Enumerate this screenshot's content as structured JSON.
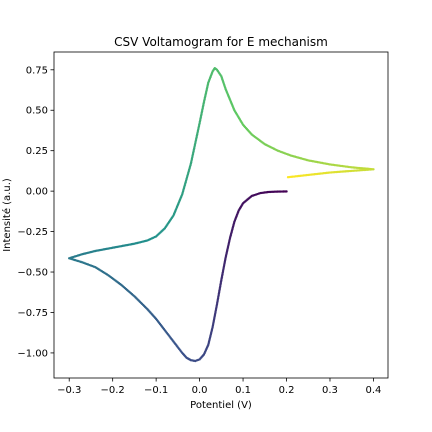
{
  "chart_data": {
    "type": "scatter",
    "title": "CSV Voltamogram for E mechanism",
    "xlabel": "Potentiel (V)",
    "ylabel": "Intensité (a.u.)",
    "xlim": [
      -0.335,
      0.4335
    ],
    "ylim": [
      -1.155,
      0.86
    ],
    "x_ticks": [
      -0.3,
      -0.2,
      -0.1,
      0.0,
      0.1,
      0.2,
      0.3,
      0.4
    ],
    "x_tick_labels": [
      "−0.3",
      "−0.2",
      "−0.1",
      "0.0",
      "0.1",
      "0.2",
      "0.3",
      "0.4"
    ],
    "y_ticks": [
      -1.0,
      -0.75,
      -0.5,
      -0.25,
      0.0,
      0.25,
      0.5,
      0.75
    ],
    "y_tick_labels": [
      "−1.00",
      "−0.75",
      "−0.50",
      "−0.25",
      "0.00",
      "0.25",
      "0.50",
      "0.75"
    ],
    "grid": false,
    "legend": "none",
    "colormap": "viridis",
    "color_by": "time",
    "marker_color_stops": [
      "#440154",
      "#3b528b",
      "#21918c",
      "#5ec962",
      "#fde725"
    ],
    "series": [
      {
        "segments": [
          {
            "direction": "cathodic sweep 0.2 V to -0.3 V",
            "points": [
              [
                0.2,
                -0.002
              ],
              [
                0.18,
                -0.003
              ],
              [
                0.16,
                -0.005
              ],
              [
                0.14,
                -0.012
              ],
              [
                0.12,
                -0.03
              ],
              [
                0.1,
                -0.075
              ],
              [
                0.09,
                -0.12
              ],
              [
                0.08,
                -0.19
              ],
              [
                0.07,
                -0.29
              ],
              [
                0.06,
                -0.41
              ],
              [
                0.05,
                -0.55
              ],
              [
                0.04,
                -0.7
              ],
              [
                0.03,
                -0.84
              ],
              [
                0.02,
                -0.95
              ],
              [
                0.01,
                -1.01
              ],
              [
                0.0,
                -1.04
              ],
              [
                -0.01,
                -1.05
              ],
              [
                -0.02,
                -1.045
              ],
              [
                -0.03,
                -1.03
              ],
              [
                -0.04,
                -1.0
              ],
              [
                -0.06,
                -0.93
              ],
              [
                -0.08,
                -0.86
              ],
              [
                -0.1,
                -0.79
              ],
              [
                -0.12,
                -0.73
              ],
              [
                -0.15,
                -0.65
              ],
              [
                -0.18,
                -0.58
              ],
              [
                -0.21,
                -0.52
              ],
              [
                -0.24,
                -0.47
              ],
              [
                -0.27,
                -0.44
              ],
              [
                -0.3,
                -0.415
              ]
            ]
          },
          {
            "direction": "anodic sweep -0.3 V to 0.4 V",
            "points": [
              [
                -0.3,
                -0.415
              ],
              [
                -0.27,
                -0.39
              ],
              [
                -0.24,
                -0.37
              ],
              [
                -0.21,
                -0.355
              ],
              [
                -0.18,
                -0.34
              ],
              [
                -0.15,
                -0.325
              ],
              [
                -0.12,
                -0.305
              ],
              [
                -0.1,
                -0.28
              ],
              [
                -0.08,
                -0.23
              ],
              [
                -0.06,
                -0.15
              ],
              [
                -0.04,
                -0.02
              ],
              [
                -0.02,
                0.17
              ],
              [
                0.0,
                0.42
              ],
              [
                0.01,
                0.55
              ],
              [
                0.02,
                0.67
              ],
              [
                0.03,
                0.74
              ],
              [
                0.035,
                0.76
              ],
              [
                0.04,
                0.75
              ],
              [
                0.05,
                0.71
              ],
              [
                0.06,
                0.63
              ],
              [
                0.08,
                0.5
              ],
              [
                0.1,
                0.41
              ],
              [
                0.12,
                0.35
              ],
              [
                0.15,
                0.29
              ],
              [
                0.18,
                0.25
              ],
              [
                0.21,
                0.22
              ],
              [
                0.25,
                0.19
              ],
              [
                0.3,
                0.165
              ],
              [
                0.35,
                0.147
              ],
              [
                0.4,
                0.135
              ]
            ]
          },
          {
            "direction": "return sweep 0.4 V to 0.2 V",
            "points": [
              [
                0.4,
                0.135
              ],
              [
                0.35,
                0.125
              ],
              [
                0.3,
                0.115
              ],
              [
                0.25,
                0.1
              ],
              [
                0.2,
                0.085
              ]
            ]
          }
        ]
      }
    ]
  }
}
